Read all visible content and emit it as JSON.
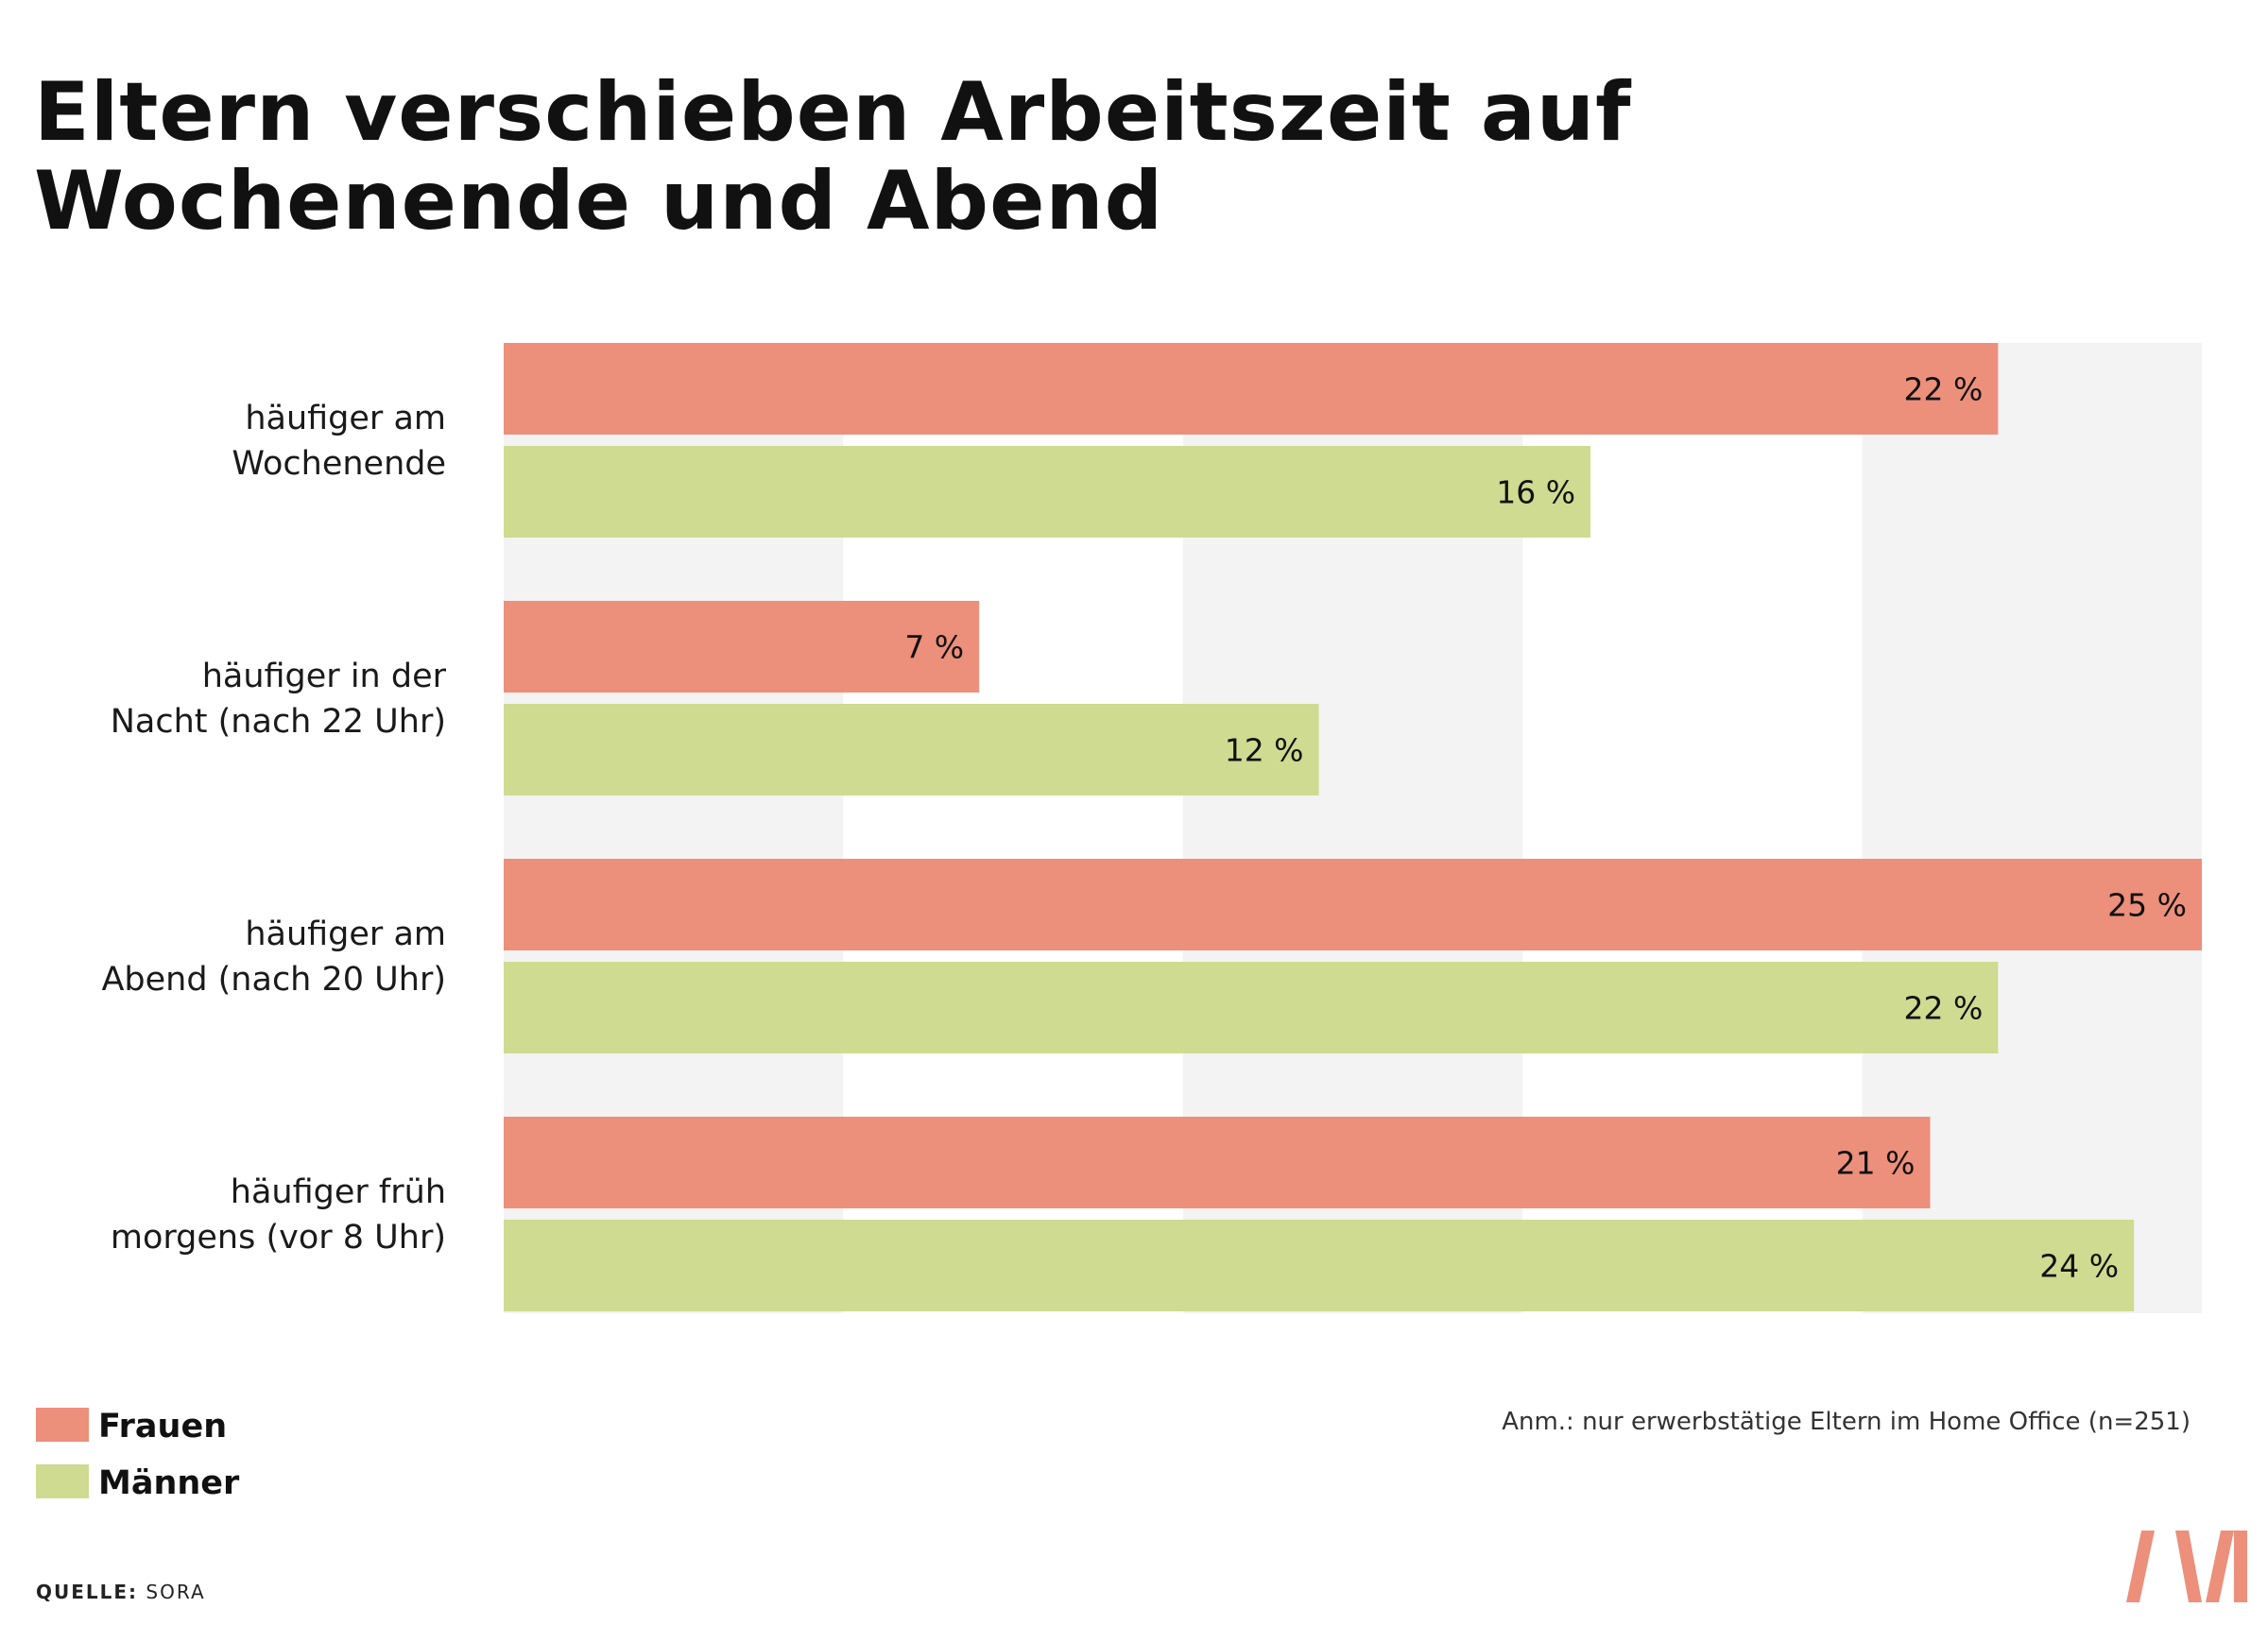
{
  "title": {
    "line1": "Eltern verschieben Arbeitszeit auf",
    "line2": "Wochenende und Abend"
  },
  "colors": {
    "frauen": "#EC8F7B",
    "maenner": "#CEDB90",
    "grid_band": "#F3F3F3",
    "logo": "#EC8F7B"
  },
  "chart_data": {
    "type": "bar",
    "orientation": "horizontal",
    "unit": "%",
    "xlim": [
      0,
      25
    ],
    "grid_band_step": 5,
    "categories": [
      [
        "häufiger am",
        "Wochenende"
      ],
      [
        "häufiger in der",
        "Nacht (nach 22 Uhr)"
      ],
      [
        "häufiger am",
        "Abend (nach 20 Uhr)"
      ],
      [
        "häufiger früh",
        "morgens (vor 8 Uhr)"
      ]
    ],
    "series": [
      {
        "name": "Frauen",
        "values": [
          22,
          7,
          25,
          21
        ],
        "labels": [
          "22 %",
          "7 %",
          "25 %",
          "21 %"
        ],
        "color": "#EC8F7B"
      },
      {
        "name": "Männer",
        "values": [
          16,
          12,
          22,
          24
        ],
        "labels": [
          "16 %",
          "12 %",
          "22 %",
          "24 %"
        ],
        "color": "#CEDB90"
      }
    ],
    "legend": {
      "placement": "bottom-left",
      "entries": [
        "Frauen",
        "Männer"
      ]
    },
    "grid": true
  },
  "note": "Anm.: nur erwerbstätige Eltern im Home Office (n=251)",
  "source": {
    "label": "QUELLE:",
    "value": "SORA"
  },
  "logo": "moment-logo"
}
